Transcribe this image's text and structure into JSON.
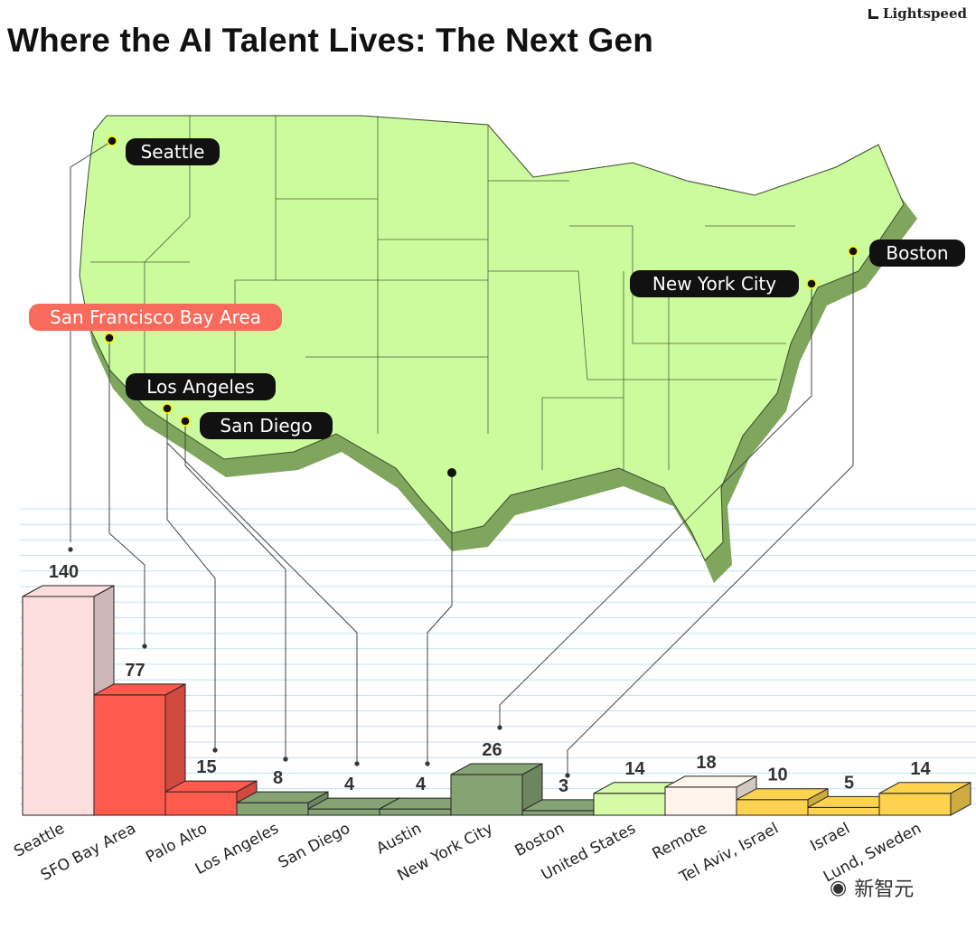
{
  "brand": {
    "name": "Lightspeed",
    "icon": "lightspeed-logo-icon"
  },
  "watermark": {
    "text": "新智元",
    "icon": "wechat-icon"
  },
  "chart_data": {
    "type": "bar",
    "title": "Where the AI Talent Lives: The Next Gen",
    "categories": [
      "Seattle",
      "SFO Bay Area",
      "Palo Alto",
      "Los Angeles",
      "San Diego",
      "Austin",
      "New York City",
      "Boston",
      "United States",
      "Remote",
      "Tel Aviv, Israel",
      "Israel",
      "Lund, Sweden"
    ],
    "values": [
      140,
      77,
      15,
      8,
      4,
      4,
      26,
      3,
      14,
      18,
      10,
      5,
      14
    ],
    "bar_colors": [
      "#fddede",
      "#fe5a4e",
      "#fe5a4e",
      "#86a374",
      "#86a374",
      "#86a374",
      "#86a374",
      "#86a374",
      "#d5fba9",
      "#fff5ec",
      "#fdd24f",
      "#fdd24f",
      "#fdd24f"
    ],
    "grid": true,
    "map_labels": [
      {
        "city": "Seattle",
        "highlight": false
      },
      {
        "city": "San Francisco Bay Area",
        "highlight": true
      },
      {
        "city": "Los Angeles",
        "highlight": false
      },
      {
        "city": "San Diego",
        "highlight": false
      },
      {
        "city": "New York City",
        "highlight": false
      },
      {
        "city": "Boston",
        "highlight": false
      }
    ],
    "colors": {
      "map_fill": "#ccfb9e",
      "map_edge": "#7da35a",
      "label_bg": "#111111",
      "highlight_bg": "#f76a5c",
      "grid": "#bfe3ee"
    }
  }
}
